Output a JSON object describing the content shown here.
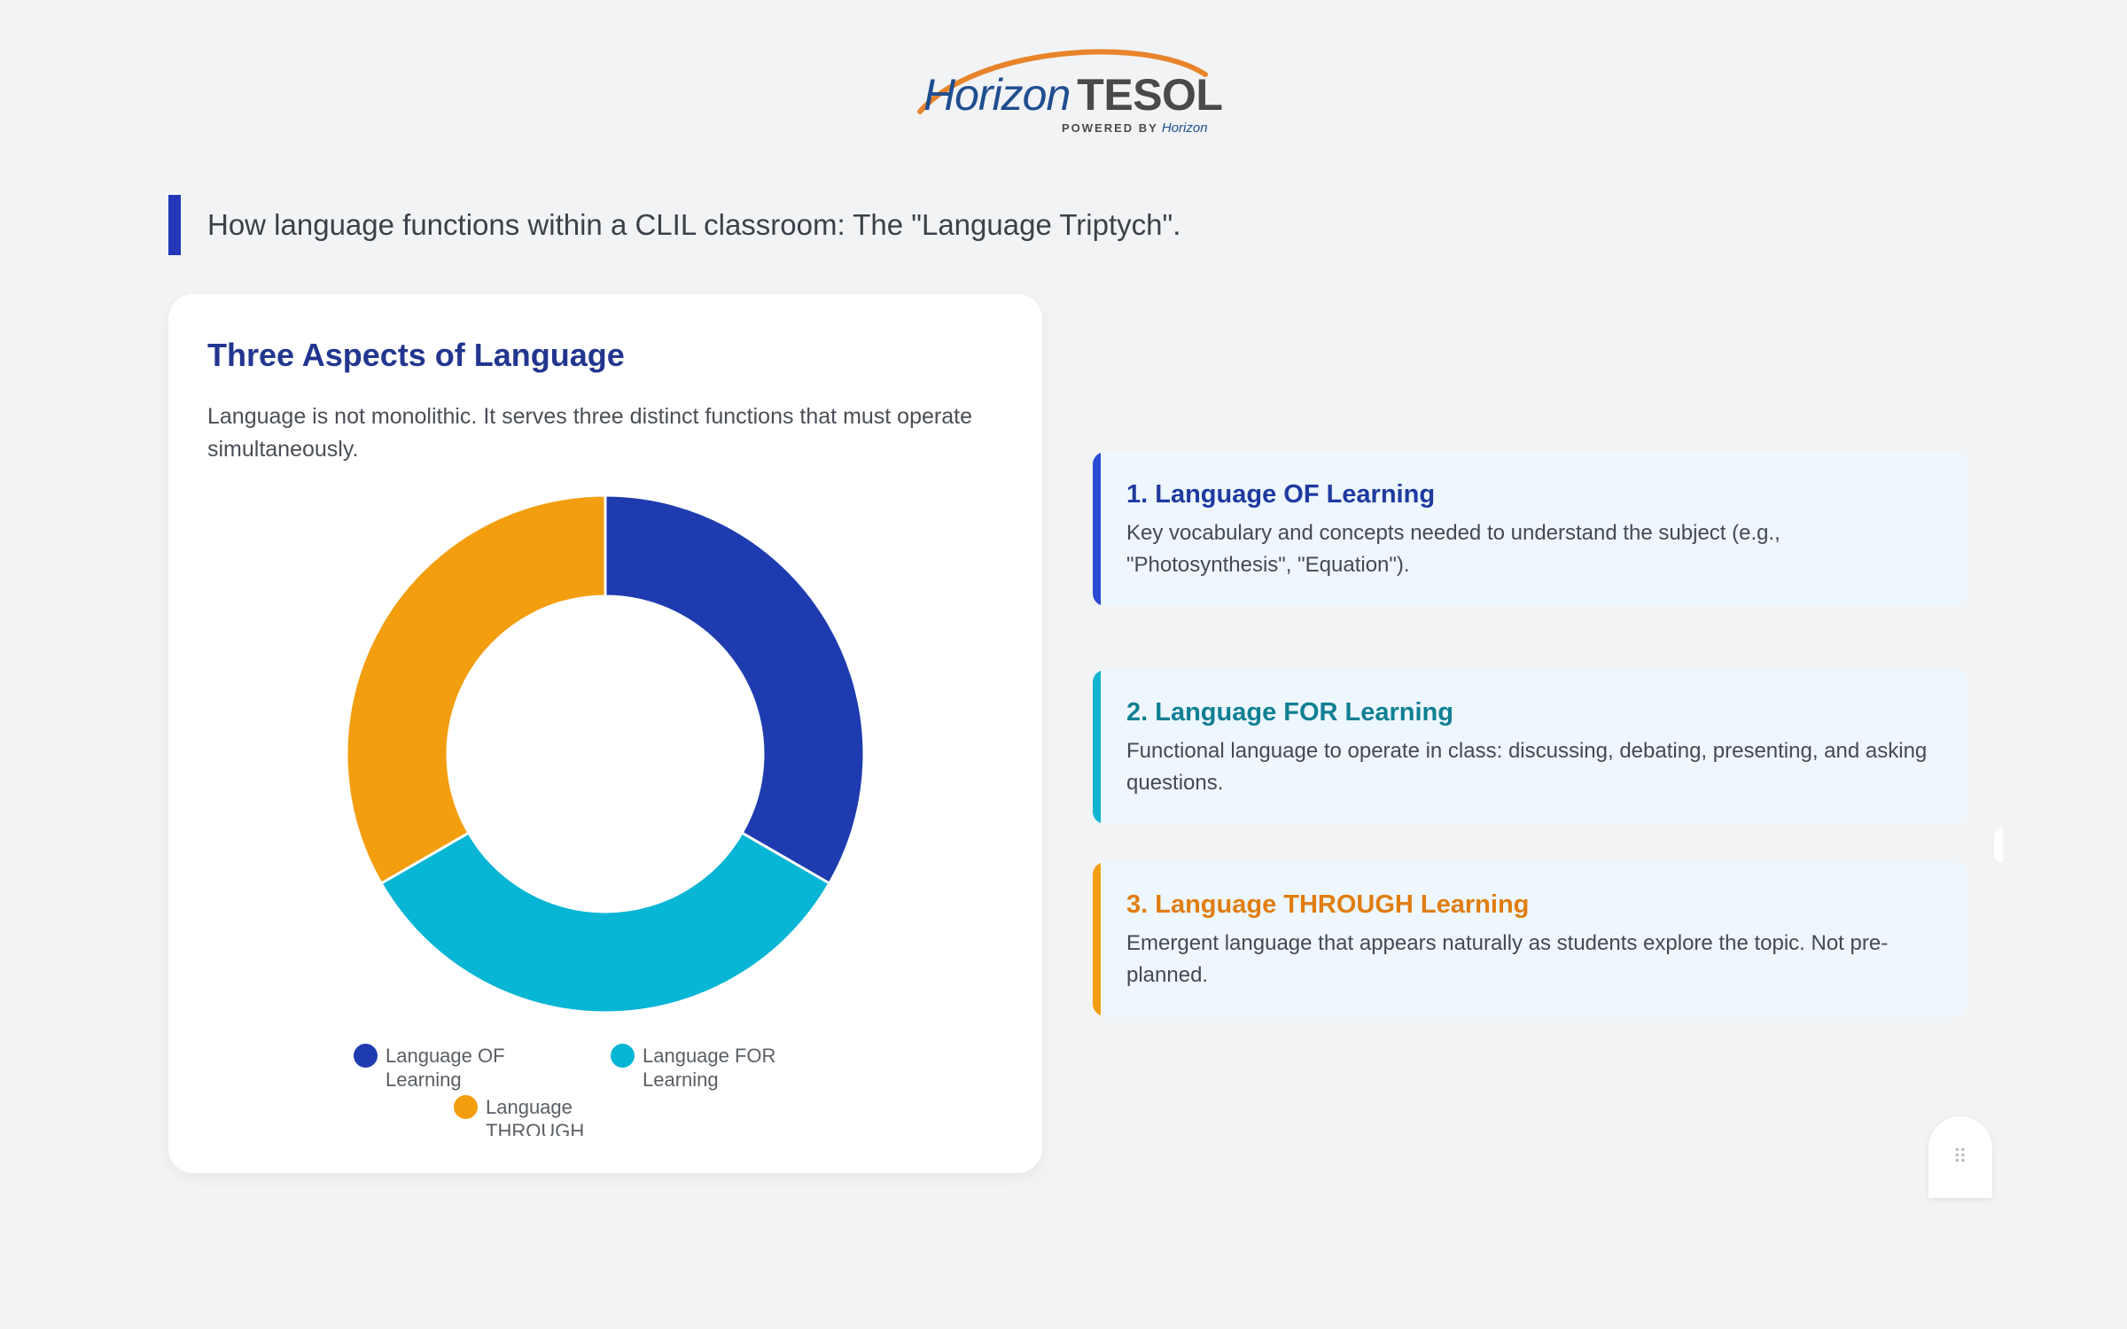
{
  "logo": {
    "word_main": "Horizon",
    "word_accent": "TESOL",
    "tagline": "POWERED BY",
    "tagline_brand": "Horizon",
    "colors": {
      "blue": "#1f4e8f",
      "orange": "#e8842a",
      "gray": "#4a4a4a"
    }
  },
  "heading": {
    "text": "How language functions within a CLIL classroom: The \"Language Triptych\".",
    "accent_color": "#2337b8"
  },
  "chart_card": {
    "title": "Three Aspects of Language",
    "description": "Language is not monolithic. It serves three distinct functions that must operate simultaneously."
  },
  "chart_data": {
    "type": "pie",
    "variant": "doughnut",
    "categories": [
      "Language OF Learning",
      "Language FOR Learning",
      "Language THROUGH Learning"
    ],
    "values": [
      1,
      1,
      1
    ],
    "colors": [
      "#1e3caf",
      "#07b5d4",
      "#f39e0e"
    ],
    "legend": [
      "Language OF Learning",
      "Language FOR Learning",
      "Language THROUGH Learning"
    ],
    "legend_position": "bottom",
    "title": ""
  },
  "info_cards": [
    {
      "title": "1. Language OF Learning",
      "description": "Key vocabulary and concepts needed to understand the subject (e.g., \"Photosynthesis\", \"Equation\").",
      "accent": "#2a4cd4",
      "title_color": "#1e3a9f"
    },
    {
      "title": "2. Language FOR Learning",
      "description": "Functional language to operate in class: discussing, debating, presenting, and asking questions.",
      "accent": "#13b4cf",
      "title_color": "#0f7f93"
    },
    {
      "title": "3. Language THROUGH Learning",
      "description": "Emergent language that appears naturally as students explore the topic. Not pre-planned.",
      "accent": "#f39e0e",
      "title_color": "#e07d0f"
    }
  ],
  "widget": {
    "icon": "grip-dots-icon",
    "glyph": "⠿"
  }
}
